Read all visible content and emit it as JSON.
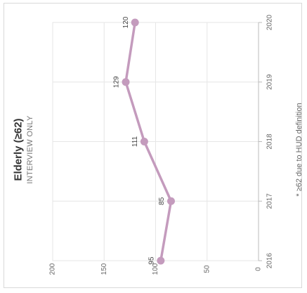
{
  "chart_data": {
    "type": "line",
    "title": "Elderly (≥62)",
    "subtitle": "INTERVIEW ONLY",
    "footnote": "* ≥62 due to HUD definition",
    "x": [
      "2016",
      "2017",
      "2018",
      "2019",
      "2020"
    ],
    "y_ticks": [
      "0",
      "50",
      "100",
      "150",
      "200"
    ],
    "ylim": [
      0,
      200
    ],
    "series": [
      {
        "values": [
          95,
          85,
          111,
          129,
          120
        ],
        "color": "#c49bbd"
      }
    ],
    "data_labels": [
      "95",
      "85",
      "111",
      "129",
      "120"
    ],
    "grid": true,
    "orientation": "rotated -90deg"
  }
}
